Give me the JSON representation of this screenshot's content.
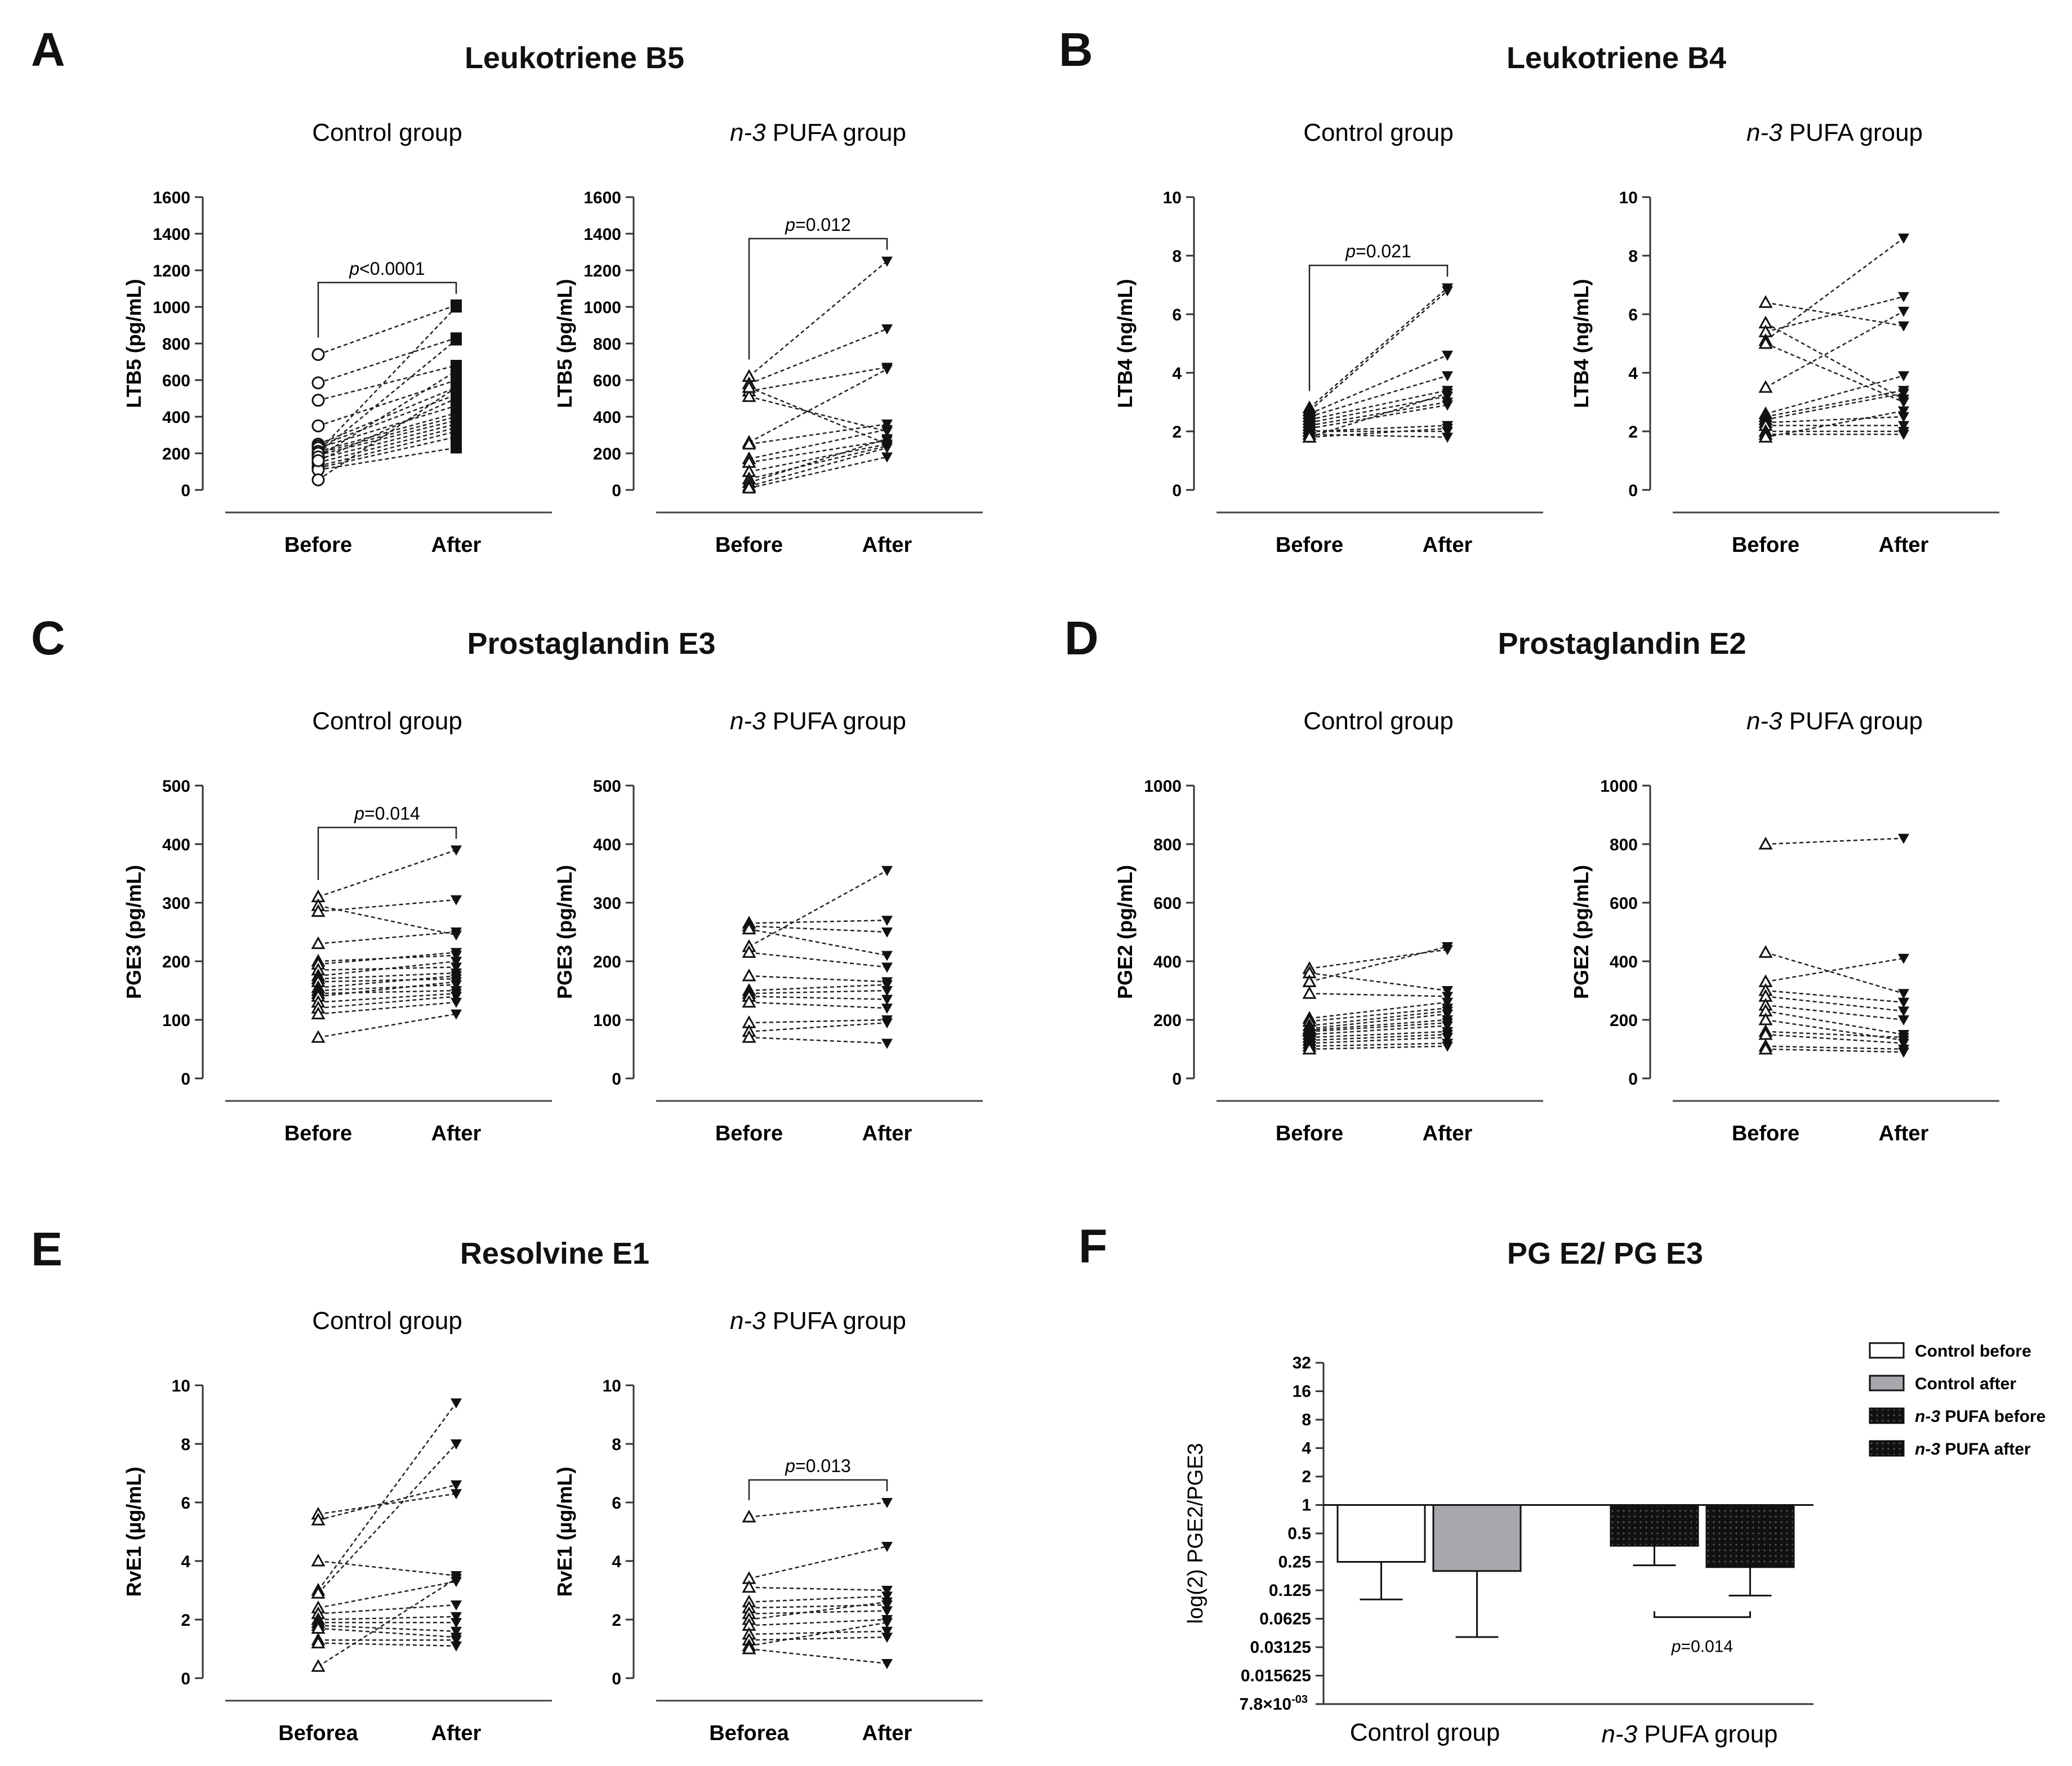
{
  "chart_data": [
    {
      "id": "A",
      "panel": "A",
      "type": "line",
      "title": "Leukotriene B5",
      "ylabel": "LTB5 (pg/mL)",
      "ylim": [
        0,
        1600
      ],
      "yticks": [
        0,
        200,
        400,
        600,
        800,
        1000,
        1200,
        1400,
        1600
      ],
      "categories": [
        "Before",
        "After"
      ],
      "groups": [
        {
          "subtitle": "Control group",
          "before_marker": "circle",
          "after_marker": "square",
          "pvalue_label": "p",
          "pvalue_text": "<0.0001",
          "pairs": [
            [
              740,
              1010
            ],
            [
              585,
              830
            ],
            [
              490,
              680
            ],
            [
              350,
              600
            ],
            [
              250,
              560
            ],
            [
              240,
              520
            ],
            [
              230,
              460
            ],
            [
              210,
              420
            ],
            [
              200,
              400
            ],
            [
              190,
              380
            ],
            [
              170,
              360
            ],
            [
              150,
              340
            ],
            [
              130,
              320
            ],
            [
              120,
              290
            ],
            [
              110,
              230
            ],
            [
              55,
              560
            ],
            [
              210,
              1000
            ],
            [
              200,
              820
            ],
            [
              180,
              650
            ],
            [
              160,
              500
            ]
          ]
        },
        {
          "subtitle": "n-3 PUFA group",
          "before_marker": "triangle-up",
          "after_marker": "triangle-down",
          "pvalue_label": "p",
          "pvalue_text": "=0.012",
          "pairs": [
            [
              620,
              1250
            ],
            [
              580,
              880
            ],
            [
              540,
              670
            ],
            [
              510,
              320
            ],
            [
              260,
              660
            ],
            [
              250,
              360
            ],
            [
              170,
              330
            ],
            [
              150,
              270
            ],
            [
              100,
              250
            ],
            [
              60,
              240
            ],
            [
              40,
              280
            ],
            [
              20,
              230
            ],
            [
              10,
              180
            ],
            [
              560,
              250
            ]
          ]
        }
      ]
    },
    {
      "id": "B",
      "panel": "B",
      "type": "line",
      "title": "Leukotriene B4",
      "ylabel": "LTB4 (ng/mL)",
      "ylim": [
        0,
        10
      ],
      "yticks": [
        0,
        2,
        4,
        6,
        8,
        10
      ],
      "categories": [
        "Before",
        "After"
      ],
      "groups": [
        {
          "subtitle": "Control group",
          "before_marker": "triangle-up",
          "after_marker": "triangle-down",
          "pvalue_label": "p",
          "pvalue_text": "=0.021",
          "pairs": [
            [
              2.8,
              6.9
            ],
            [
              2.7,
              6.8
            ],
            [
              2.6,
              4.6
            ],
            [
              2.5,
              3.9
            ],
            [
              2.4,
              3.4
            ],
            [
              2.3,
              3.2
            ],
            [
              2.2,
              3.0
            ],
            [
              2.1,
              2.9
            ],
            [
              2.0,
              2.2
            ],
            [
              2.0,
              2.0
            ],
            [
              1.9,
              1.8
            ],
            [
              1.8,
              3.3
            ],
            [
              1.8,
              2.1
            ]
          ]
        },
        {
          "subtitle": "n-3 PUFA group",
          "before_marker": "triangle-up",
          "after_marker": "triangle-down",
          "pvalue_label": "",
          "pvalue_text": "",
          "pairs": [
            [
              6.4,
              5.6
            ],
            [
              5.7,
              3.1
            ],
            [
              5.4,
              6.6
            ],
            [
              5.1,
              8.6
            ],
            [
              3.5,
              6.1
            ],
            [
              2.6,
              3.9
            ],
            [
              2.5,
              3.4
            ],
            [
              2.4,
              3.3
            ],
            [
              2.3,
              2.5
            ],
            [
              2.2,
              2.2
            ],
            [
              2.0,
              2.0
            ],
            [
              1.9,
              1.9
            ],
            [
              1.8,
              2.7
            ],
            [
              5.0,
              3.0
            ]
          ]
        }
      ]
    },
    {
      "id": "C",
      "panel": "C",
      "type": "line",
      "title": "Prostaglandin E3",
      "ylabel": "PGE3 (pg/mL)",
      "ylim": [
        0,
        500
      ],
      "yticks": [
        0,
        100,
        200,
        300,
        400,
        500
      ],
      "categories": [
        "Before",
        "After"
      ],
      "groups": [
        {
          "subtitle": "Control group",
          "before_marker": "triangle-up",
          "after_marker": "triangle-down",
          "pvalue_label": "p",
          "pvalue_text": "=0.014",
          "pairs": [
            [
              310,
              390
            ],
            [
              295,
              245
            ],
            [
              285,
              305
            ],
            [
              230,
              250
            ],
            [
              200,
              210
            ],
            [
              195,
              215
            ],
            [
              185,
              190
            ],
            [
              175,
              200
            ],
            [
              170,
              180
            ],
            [
              165,
              170
            ],
            [
              155,
              175
            ],
            [
              150,
              160
            ],
            [
              145,
              150
            ],
            [
              140,
              165
            ],
            [
              130,
              145
            ],
            [
              120,
              140
            ],
            [
              110,
              130
            ],
            [
              70,
              110
            ]
          ]
        },
        {
          "subtitle": "n-3 PUFA group",
          "before_marker": "triangle-up",
          "after_marker": "triangle-down",
          "pvalue_label": "",
          "pvalue_text": "",
          "pairs": [
            [
              265,
              270
            ],
            [
              260,
              250
            ],
            [
              255,
              210
            ],
            [
              225,
              355
            ],
            [
              215,
              190
            ],
            [
              175,
              165
            ],
            [
              150,
              160
            ],
            [
              145,
              150
            ],
            [
              140,
              135
            ],
            [
              130,
              120
            ],
            [
              95,
              100
            ],
            [
              80,
              95
            ],
            [
              70,
              60
            ]
          ]
        }
      ]
    },
    {
      "id": "D",
      "panel": "D",
      "type": "line",
      "title": "Prostaglandin E2",
      "ylabel": "PGE2 (pg/mL)",
      "ylim": [
        0,
        1000
      ],
      "yticks": [
        0,
        200,
        400,
        600,
        800,
        1000
      ],
      "categories": [
        "Before",
        "After"
      ],
      "groups": [
        {
          "subtitle": "Control group",
          "before_marker": "triangle-up",
          "after_marker": "triangle-down",
          "pvalue_label": "",
          "pvalue_text": "",
          "pairs": [
            [
              375,
              440
            ],
            [
              360,
              300
            ],
            [
              330,
              450
            ],
            [
              290,
              280
            ],
            [
              205,
              260
            ],
            [
              195,
              240
            ],
            [
              180,
              230
            ],
            [
              170,
              220
            ],
            [
              165,
              200
            ],
            [
              160,
              190
            ],
            [
              150,
              180
            ],
            [
              140,
              160
            ],
            [
              130,
              150
            ],
            [
              120,
              140
            ],
            [
              110,
              120
            ],
            [
              100,
              110
            ]
          ]
        },
        {
          "subtitle": "n-3 PUFA group",
          "before_marker": "triangle-up",
          "after_marker": "triangle-down",
          "pvalue_label": "",
          "pvalue_text": "",
          "pairs": [
            [
              800,
              820
            ],
            [
              430,
              290
            ],
            [
              330,
              410
            ],
            [
              300,
              260
            ],
            [
              280,
              230
            ],
            [
              250,
              200
            ],
            [
              230,
              150
            ],
            [
              200,
              130
            ],
            [
              160,
              140
            ],
            [
              150,
              120
            ],
            [
              110,
              100
            ],
            [
              100,
              90
            ]
          ]
        }
      ]
    },
    {
      "id": "E",
      "panel": "E",
      "type": "line",
      "title": "Resolvine E1",
      "ylabel": "RvE1 (µg/mL)",
      "ylim": [
        0,
        10
      ],
      "yticks": [
        0,
        2,
        4,
        6,
        8,
        10
      ],
      "categories": [
        "Beforea",
        "After"
      ],
      "groups": [
        {
          "subtitle": "Control group",
          "before_marker": "triangle-up",
          "after_marker": "triangle-down",
          "pvalue_label": "",
          "pvalue_text": "",
          "pairs": [
            [
              5.6,
              6.3
            ],
            [
              5.4,
              6.6
            ],
            [
              4.0,
              3.5
            ],
            [
              3.0,
              9.4
            ],
            [
              2.9,
              8.0
            ],
            [
              2.4,
              3.3
            ],
            [
              2.2,
              2.5
            ],
            [
              2.0,
              2.1
            ],
            [
              1.9,
              1.9
            ],
            [
              1.8,
              1.6
            ],
            [
              1.7,
              1.4
            ],
            [
              1.3,
              1.3
            ],
            [
              1.2,
              1.1
            ],
            [
              0.4,
              3.4
            ]
          ]
        },
        {
          "subtitle": "n-3 PUFA group",
          "before_marker": "triangle-up",
          "after_marker": "triangle-down",
          "pvalue_label": "p",
          "pvalue_text": "=0.013",
          "pairs": [
            [
              5.5,
              6.0
            ],
            [
              3.4,
              4.5
            ],
            [
              3.1,
              3.0
            ],
            [
              2.6,
              2.8
            ],
            [
              2.4,
              2.5
            ],
            [
              2.2,
              2.3
            ],
            [
              2.0,
              2.6
            ],
            [
              1.8,
              2.0
            ],
            [
              1.5,
              1.6
            ],
            [
              1.3,
              1.4
            ],
            [
              1.1,
              1.9
            ],
            [
              1.0,
              0.5
            ]
          ]
        }
      ]
    },
    {
      "id": "F",
      "panel": "F",
      "type": "bar",
      "title": "PG E2/ PG E3",
      "ylabel": "log(2) PGE2/PGE3",
      "yticks": [
        "32",
        "16",
        "8",
        "4",
        "2",
        "1",
        "0.5",
        "0.25",
        "0.125",
        "0.0625",
        "0.03125",
        "0.015625"
      ],
      "ymin_label": "7.8×10",
      "ymin_exp": "-03",
      "categories": [
        "Control group",
        "n-3 PUFA group"
      ],
      "series": [
        {
          "name": "Control before",
          "fill": "#ffffff",
          "pattern": "none",
          "value": 0.25,
          "error_lower": 0.1
        },
        {
          "name": "Control after",
          "fill": "#a8a8ac",
          "pattern": "none",
          "value": 0.2,
          "error_lower": 0.04
        },
        {
          "name": "n-3 PUFA before",
          "fill": "#e8e8e8",
          "pattern": "dots",
          "value": 0.37,
          "error_lower": 0.23
        },
        {
          "name": "n-3 PUFA after",
          "fill": "#9a9a9a",
          "pattern": "dots",
          "value": 0.22,
          "error_lower": 0.11
        }
      ],
      "legend_prefix": "n-3",
      "pvalue_label": "p",
      "pvalue_text": "=0.014"
    }
  ]
}
